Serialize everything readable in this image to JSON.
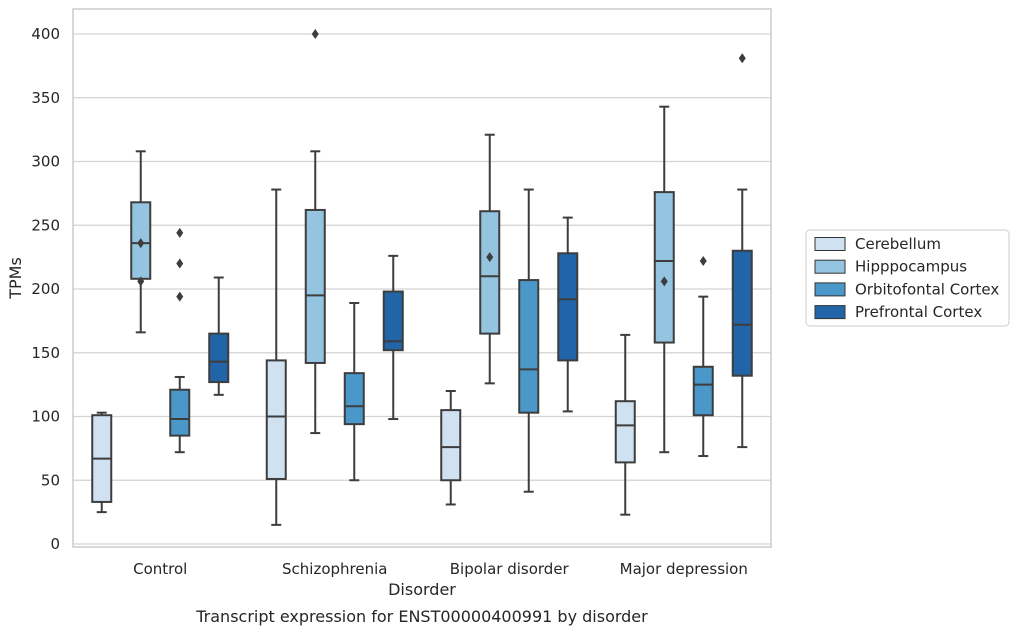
{
  "chart_data": {
    "type": "box",
    "title": "",
    "caption": "Transcript expression for ENST00000400991 by disorder",
    "xlabel": "Disorder",
    "ylabel": "TPMs",
    "ylim": [
      0,
      420
    ],
    "yticks": [
      0,
      50,
      100,
      150,
      200,
      250,
      300,
      350,
      400
    ],
    "grid": "horizontal",
    "legend_position": "right",
    "categories": [
      "Control",
      "Schizophrenia",
      "Bipolar disorder",
      "Major depression"
    ],
    "series": [
      {
        "name": "Cerebellum",
        "color": "#d0e1f2",
        "boxes": [
          {
            "whisker_low": 25,
            "q1": 33,
            "median": 67,
            "q3": 101,
            "whisker_high": 103,
            "outliers": []
          },
          {
            "whisker_low": 15,
            "q1": 51,
            "median": 100,
            "q3": 144,
            "whisker_high": 278,
            "outliers": []
          },
          {
            "whisker_low": 31,
            "q1": 50,
            "median": 76,
            "q3": 105,
            "whisker_high": 120,
            "outliers": []
          },
          {
            "whisker_low": 23,
            "q1": 64,
            "median": 93,
            "q3": 112,
            "whisker_high": 164,
            "outliers": []
          }
        ]
      },
      {
        "name": "Hipppocampus",
        "color": "#94c4df",
        "boxes": [
          {
            "whisker_low": 166,
            "q1": 208,
            "median": 236,
            "q3": 268,
            "whisker_high": 308,
            "outliers": [
              206,
              236
            ]
          },
          {
            "whisker_low": 87,
            "q1": 142,
            "median": 195,
            "q3": 262,
            "whisker_high": 308,
            "outliers": [
              400
            ]
          },
          {
            "whisker_low": 126,
            "q1": 165,
            "median": 210,
            "q3": 261,
            "whisker_high": 321,
            "outliers": [
              225
            ]
          },
          {
            "whisker_low": 72,
            "q1": 158,
            "median": 222,
            "q3": 276,
            "whisker_high": 343,
            "outliers": [
              206
            ]
          }
        ]
      },
      {
        "name": "Orbitofontal Cortex",
        "color": "#4a98c9",
        "boxes": [
          {
            "whisker_low": 72,
            "q1": 85,
            "median": 98,
            "q3": 121,
            "whisker_high": 131,
            "outliers": [
              194,
              220,
              244
            ]
          },
          {
            "whisker_low": 50,
            "q1": 94,
            "median": 108,
            "q3": 134,
            "whisker_high": 189,
            "outliers": []
          },
          {
            "whisker_low": 41,
            "q1": 103,
            "median": 137,
            "q3": 207,
            "whisker_high": 278,
            "outliers": []
          },
          {
            "whisker_low": 69,
            "q1": 101,
            "median": 125,
            "q3": 139,
            "whisker_high": 194,
            "outliers": [
              222
            ]
          }
        ]
      },
      {
        "name": "Prefrontal Cortex",
        "color": "#2264a8",
        "boxes": [
          {
            "whisker_low": 117,
            "q1": 127,
            "median": 143,
            "q3": 165,
            "whisker_high": 209,
            "outliers": []
          },
          {
            "whisker_low": 98,
            "q1": 152,
            "median": 159,
            "q3": 198,
            "whisker_high": 226,
            "outliers": []
          },
          {
            "whisker_low": 104,
            "q1": 144,
            "median": 192,
            "q3": 228,
            "whisker_high": 256,
            "outliers": []
          },
          {
            "whisker_low": 76,
            "q1": 132,
            "median": 172,
            "q3": 230,
            "whisker_high": 278,
            "outliers": [
              381
            ]
          }
        ]
      }
    ]
  }
}
